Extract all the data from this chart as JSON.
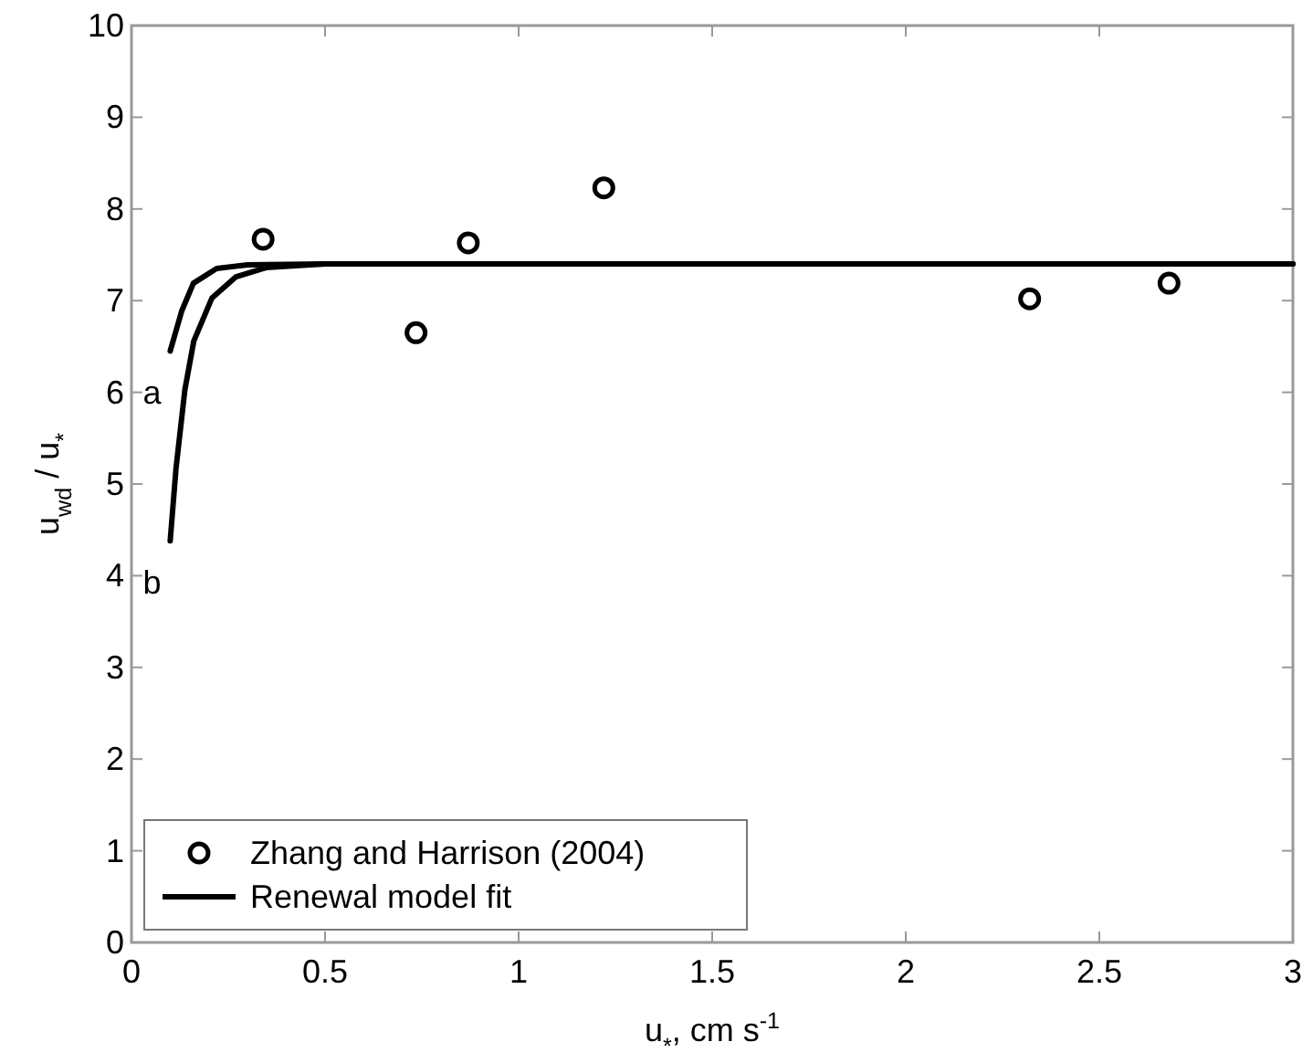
{
  "chart_data": {
    "type": "line",
    "xlabel": "u$_{*}$, cm s$^{-1}$",
    "ylabel": "u$_{wd}$ / u$_{*}$",
    "xlim": [
      0,
      3
    ],
    "xticks": [
      0,
      0.5,
      1,
      1.5,
      2,
      2.5,
      3
    ],
    "ylim": [
      0,
      10
    ],
    "yticks": [
      0,
      1,
      2,
      3,
      4,
      5,
      6,
      7,
      8,
      9,
      10
    ],
    "grid": false,
    "legend": "bottom left",
    "series": [
      {
        "name": "Zhang and Harrison (2004)",
        "type": "scatter",
        "marker": "circle",
        "color": "#000000",
        "x": [
          0.34,
          0.735,
          0.87,
          1.22,
          2.32,
          2.68
        ],
        "values": [
          7.67,
          6.65,
          7.63,
          8.23,
          7.02,
          7.19
        ]
      },
      {
        "name": "Renewal model fit",
        "color": "#000000",
        "x": [
          0.1,
          0.13,
          0.16,
          0.22,
          0.3,
          0.5,
          1,
          2,
          3
        ],
        "values": [
          6.45,
          6.89,
          7.19,
          7.35,
          7.39,
          7.4,
          7.4,
          7.4,
          7.4
        ]
      },
      {
        "color": "#000000",
        "x": [
          0.1,
          0.115,
          0.138,
          0.161,
          0.208,
          0.27,
          0.347,
          0.5,
          1,
          2,
          3
        ],
        "values": [
          4.38,
          5.17,
          6.03,
          6.56,
          7.03,
          7.26,
          7.36,
          7.4,
          7.4,
          7.4,
          7.4
        ]
      }
    ],
    "annotations": [
      "a",
      "b"
    ]
  }
}
